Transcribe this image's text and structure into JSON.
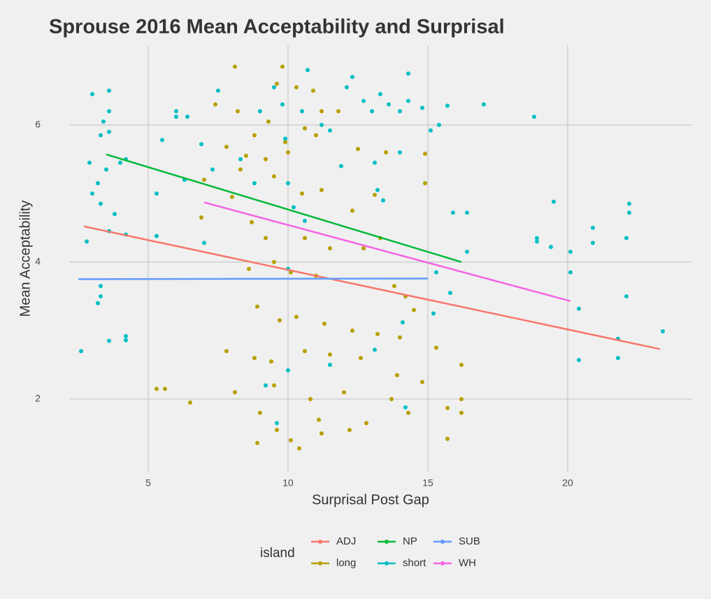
{
  "chart_data": {
    "type": "scatter",
    "title": "Sprouse 2016 Mean Acceptability and Surprisal",
    "x_label": "Surprisal Post Gap",
    "y_label": "Mean Acceptability",
    "legend_title": "island",
    "xlim": [
      2.2,
      24.45
    ],
    "xticks": [
      5,
      10,
      15,
      20
    ],
    "ylim": [
      0.94,
      7.16
    ],
    "yticks": [
      2,
      4,
      6
    ],
    "grid": true,
    "series": [
      {
        "name": "ADJ",
        "color": "#F8766D",
        "mark": "line",
        "x": [
          2.7,
          23.3
        ],
        "values": [
          4.52,
          2.73
        ]
      },
      {
        "name": "long",
        "color": "#B79F00",
        "mark": "point",
        "x": [
          8.1,
          9.8,
          10.3,
          9.6,
          10.9,
          11.8,
          11.2,
          8.2,
          7.4,
          9.3,
          10.6,
          8.8,
          9.9,
          11.0,
          9.2,
          10.0,
          12.5,
          13.5,
          14.9,
          7.8,
          8.5,
          8.3,
          9.5,
          10.5,
          11.2,
          12.3,
          13.1,
          14.9,
          7.0,
          6.9,
          8.0,
          8.7,
          9.2,
          10.6,
          11.5,
          12.7,
          13.3,
          9.5,
          8.6,
          10.1,
          11.0,
          13.8,
          14.2,
          14.5,
          8.9,
          9.7,
          10.3,
          11.3,
          12.3,
          13.2,
          14.0,
          15.3,
          16.2,
          7.8,
          8.8,
          9.4,
          10.6,
          11.5,
          12.6,
          13.9,
          14.8,
          5.3,
          5.6,
          6.5,
          8.1,
          9.0,
          9.6,
          10.1,
          10.4,
          8.9,
          11.2,
          11.1,
          12.2,
          12.8,
          14.3,
          15.7,
          16.2,
          16.2,
          15.7,
          9.5,
          10.8,
          12.0,
          13.7
        ],
        "values": [
          6.85,
          6.85,
          6.55,
          6.6,
          6.5,
          6.2,
          6.2,
          6.2,
          6.3,
          6.05,
          5.95,
          5.85,
          5.75,
          5.85,
          5.5,
          5.6,
          5.65,
          5.6,
          5.58,
          5.68,
          5.55,
          5.35,
          5.25,
          5.0,
          5.05,
          4.75,
          4.98,
          5.15,
          5.2,
          4.65,
          4.95,
          4.58,
          4.35,
          4.35,
          4.2,
          4.2,
          4.35,
          4.0,
          3.9,
          3.85,
          3.8,
          3.65,
          3.5,
          3.3,
          3.35,
          3.15,
          3.2,
          3.1,
          3.0,
          2.95,
          2.9,
          2.75,
          2.5,
          2.7,
          2.6,
          2.55,
          2.7,
          2.65,
          2.6,
          2.35,
          2.25,
          2.15,
          2.15,
          1.95,
          2.1,
          1.8,
          1.55,
          1.4,
          1.28,
          1.36,
          1.5,
          1.7,
          1.55,
          1.65,
          1.8,
          1.42,
          1.8,
          2.0,
          1.87,
          2.2,
          2.0,
          2.1,
          2.0
        ]
      },
      {
        "name": "NP",
        "color": "#00BA38",
        "mark": "line",
        "x": [
          3.5,
          16.2
        ],
        "values": [
          5.57,
          4.0
        ]
      },
      {
        "name": "short",
        "color": "#00BFC4",
        "mark": "point",
        "x": [
          2.6,
          2.8,
          2.9,
          3.0,
          3.0,
          3.2,
          3.3,
          3.4,
          3.5,
          3.6,
          3.6,
          3.6,
          3.8,
          3.3,
          3.6,
          3.3,
          3.3,
          3.2,
          3.6,
          4.2,
          4.2,
          4.0,
          4.2,
          4.2,
          5.3,
          5.3,
          5.5,
          6.0,
          6.0,
          6.4,
          6.3,
          6.9,
          7.0,
          7.5,
          7.3,
          8.3,
          8.8,
          9.0,
          9.5,
          9.8,
          9.9,
          10.0,
          10.2,
          10.6,
          10.5,
          10.7,
          11.2,
          11.5,
          11.9,
          12.1,
          12.3,
          12.7,
          13.0,
          13.3,
          13.6,
          14.0,
          14.3,
          14.3,
          14.8,
          15.1,
          15.7,
          15.4,
          14.0,
          13.1,
          13.2,
          13.4,
          15.9,
          16.4,
          16.4,
          15.8,
          15.2,
          14.1,
          13.1,
          14.2,
          15.3,
          10.0,
          9.6,
          9.2,
          10.0,
          11.5,
          17.0,
          18.8,
          18.9,
          18.9,
          19.5,
          19.4,
          20.1,
          20.1,
          20.4,
          20.4,
          20.9,
          20.9,
          21.8,
          21.8,
          22.1,
          22.1,
          22.2,
          22.2,
          23.4
        ],
        "values": [
          2.7,
          4.3,
          5.45,
          6.45,
          5.0,
          5.15,
          5.85,
          6.05,
          5.35,
          6.5,
          6.2,
          5.9,
          4.7,
          4.85,
          4.45,
          3.65,
          3.5,
          3.4,
          2.85,
          2.92,
          2.86,
          5.45,
          5.5,
          4.4,
          5.0,
          4.38,
          5.78,
          6.2,
          6.12,
          6.12,
          5.2,
          5.72,
          4.28,
          6.5,
          5.35,
          5.5,
          5.15,
          6.2,
          6.55,
          6.3,
          5.8,
          5.15,
          4.8,
          4.6,
          6.2,
          6.8,
          6.0,
          5.92,
          5.4,
          6.55,
          6.7,
          6.35,
          6.2,
          6.45,
          6.3,
          6.2,
          6.75,
          6.35,
          6.25,
          5.92,
          6.28,
          6.0,
          5.6,
          5.45,
          5.05,
          4.9,
          4.72,
          4.72,
          4.15,
          3.55,
          3.25,
          3.12,
          2.72,
          1.88,
          3.85,
          2.42,
          1.65,
          2.2,
          3.9,
          2.5,
          6.3,
          6.12,
          4.35,
          4.3,
          4.88,
          4.22,
          4.15,
          3.85,
          3.32,
          2.57,
          4.5,
          4.28,
          2.88,
          2.6,
          4.35,
          3.5,
          4.85,
          4.72,
          2.99
        ]
      },
      {
        "name": "SUB",
        "color": "#619CFF",
        "mark": "line",
        "x": [
          2.5,
          15.0
        ],
        "values": [
          3.75,
          3.76
        ]
      },
      {
        "name": "WH",
        "color": "#F564E3",
        "mark": "line",
        "x": [
          7.0,
          20.1
        ],
        "values": [
          4.87,
          3.43
        ]
      }
    ]
  }
}
